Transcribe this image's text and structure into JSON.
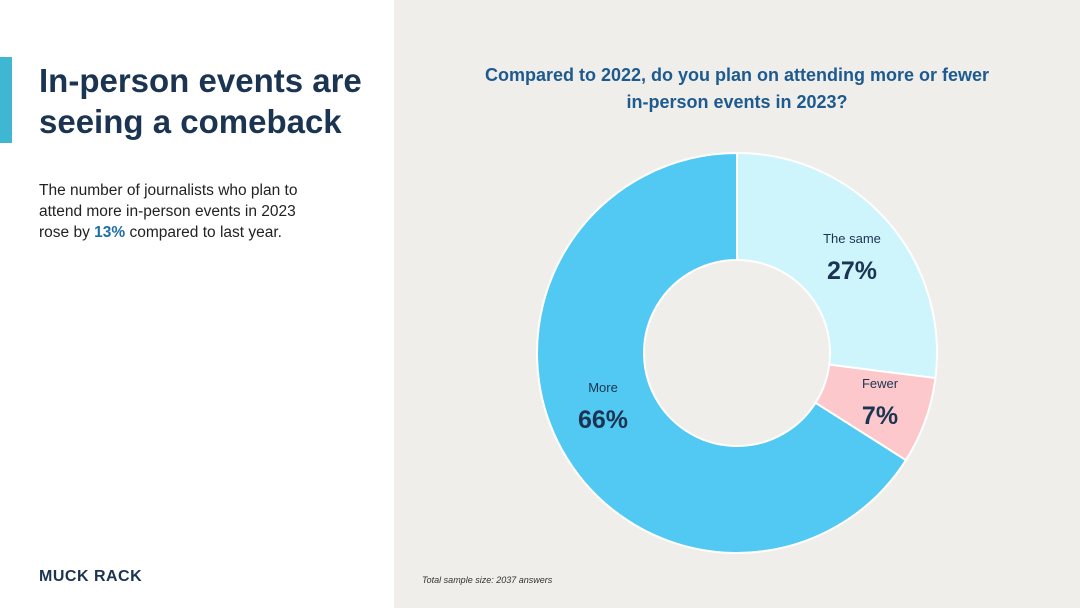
{
  "left": {
    "title": "In-person events are seeing a comeback",
    "desc_pre": "The number of journalists who plan to attend more in-person events in 2023 rose by ",
    "desc_highlight": "13%",
    "desc_post": " compared to last year.",
    "logo": "MUCK RACK"
  },
  "chart_data": {
    "type": "pie",
    "donut": true,
    "title": "Compared to 2022, do you plan on attending more or fewer in-person events in 2023?",
    "categories": [
      "The same",
      "Fewer",
      "More"
    ],
    "values": [
      27,
      7,
      66
    ],
    "labels": [
      "27%",
      "7%",
      "66%"
    ],
    "colors": [
      "#cdf5fb",
      "#fcc8cc",
      "#52c9f2"
    ],
    "note": "Total sample size: 2037 answers"
  }
}
